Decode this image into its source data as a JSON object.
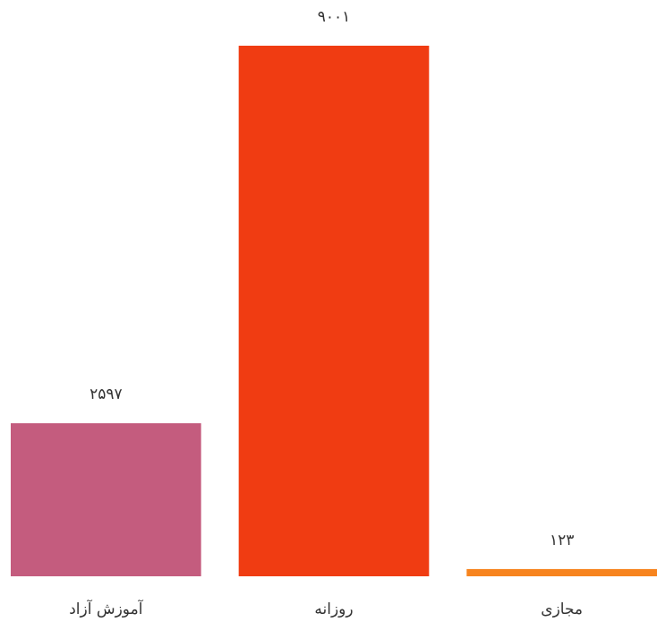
{
  "chart_data": {
    "type": "bar",
    "categories": [
      "آموزش آزاد",
      "روزانه",
      "مجازی"
    ],
    "values": [
      2597,
      9001,
      123
    ],
    "value_labels": [
      "۲۵۹۷",
      "۹۰۰۱",
      "۱۲۳"
    ],
    "colors": [
      "#c45c7e",
      "#f03c12",
      "#f7841e"
    ]
  }
}
